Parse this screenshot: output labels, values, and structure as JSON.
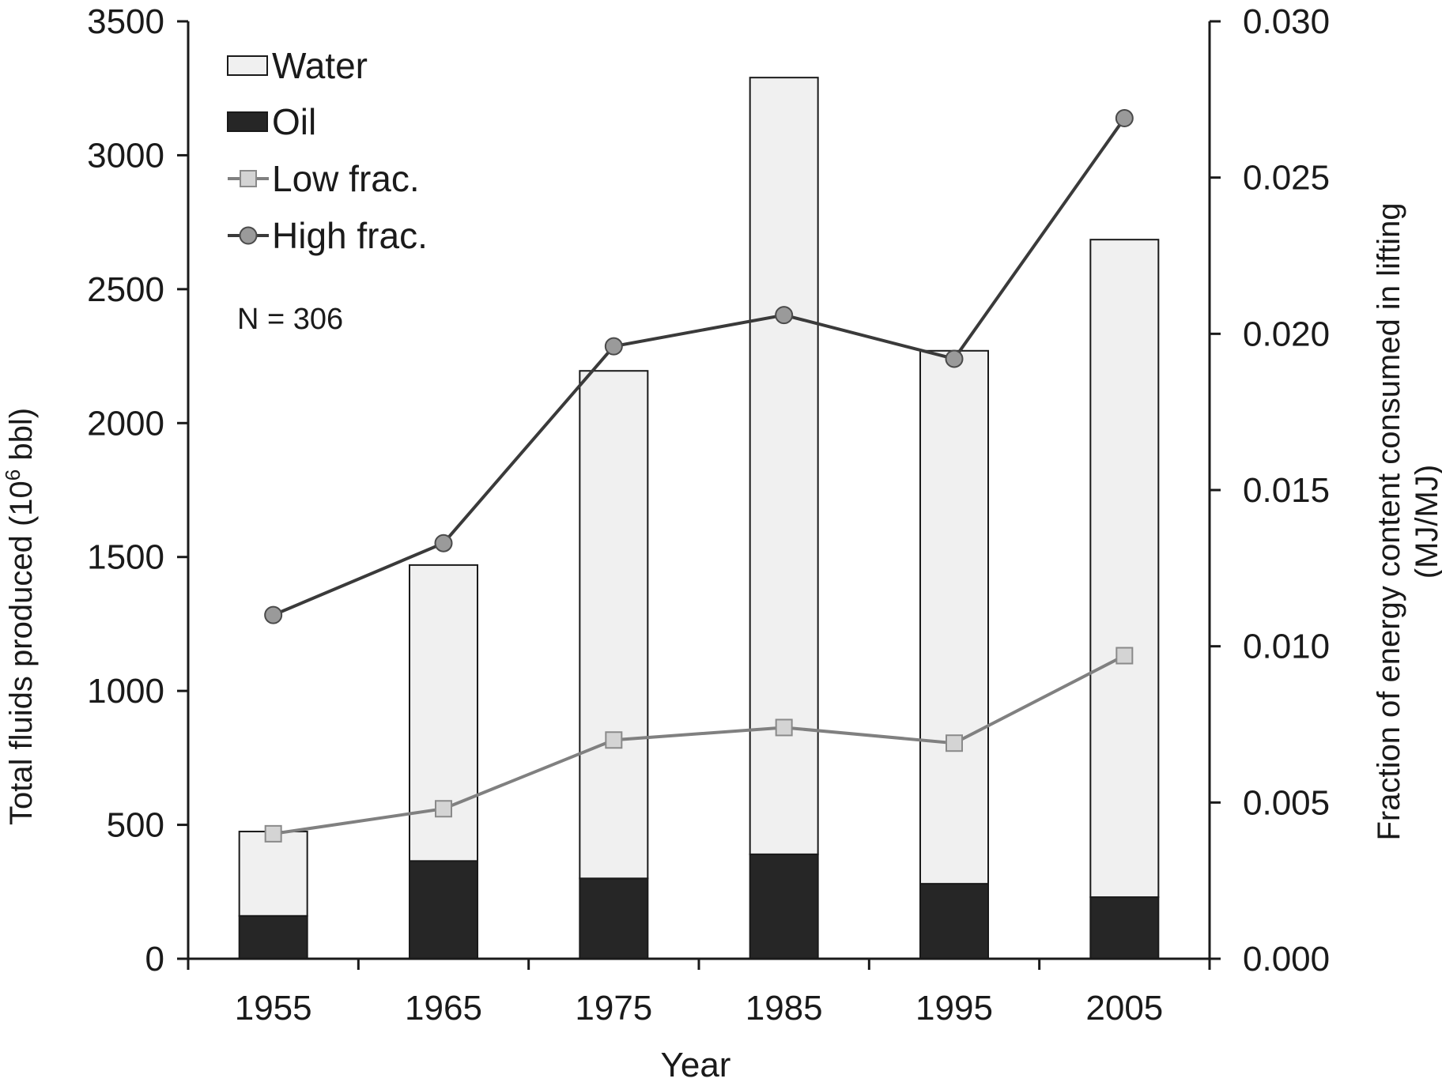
{
  "chart_data": {
    "type": "bar",
    "stacked": true,
    "title": "",
    "categories": [
      "1955",
      "1965",
      "1975",
      "1985",
      "1995",
      "2005"
    ],
    "xlabel": "Year",
    "ylabel": "Total fluids produced (10",
    "ylabel_sup": "6",
    "ylabel_end": " bbl)",
    "y2label_line1": "Fraction of energy content consumed in lifting",
    "y2label_line2": "(MJ/MJ)",
    "ylim": [
      0,
      3500
    ],
    "yticks": [
      0,
      500,
      1000,
      1500,
      2000,
      2500,
      3000,
      3500
    ],
    "ytick_labels": [
      "0",
      "500",
      "1000",
      "1500",
      "2000",
      "2500",
      "3000",
      "3500"
    ],
    "y2lim": [
      0,
      0.03
    ],
    "y2ticks": [
      0,
      0.005,
      0.01,
      0.015,
      0.02,
      0.025,
      0.03
    ],
    "y2tick_labels": [
      "0.000",
      "0.005",
      "0.010",
      "0.015",
      "0.020",
      "0.025",
      "0.030"
    ],
    "bar_series": [
      {
        "name": "Oil",
        "color": "#262626",
        "values": [
          160,
          365,
          300,
          390,
          280,
          230
        ]
      },
      {
        "name": "Water",
        "color": "#f0f0f0",
        "values": [
          315,
          1105,
          1895,
          2900,
          1990,
          2455
        ]
      }
    ],
    "line_series": [
      {
        "name": "Low frac.",
        "axis": "y2",
        "marker": "square",
        "line_color": "#808080",
        "marker_fill": "#d4d4d4",
        "marker_stroke": "#8a8a8a",
        "values": [
          0.004,
          0.0048,
          0.007,
          0.0074,
          0.0069,
          0.0097
        ]
      },
      {
        "name": "High frac.",
        "axis": "y2",
        "marker": "circle",
        "line_color": "#3a3a3a",
        "marker_fill": "#9a9a9a",
        "marker_stroke": "#4a4a4a",
        "values": [
          0.011,
          0.0133,
          0.0196,
          0.0206,
          0.0192,
          0.0269
        ]
      }
    ],
    "legend": [
      {
        "label": "Water",
        "kind": "box",
        "fill": "#f0f0f0"
      },
      {
        "label": "Oil",
        "kind": "box",
        "fill": "#262626"
      },
      {
        "label": "Low frac.",
        "kind": "line-square"
      },
      {
        "label": "High frac.",
        "kind": "line-circle"
      }
    ],
    "legend_position": "top-left",
    "annotation": "N = 306",
    "grid": false
  }
}
